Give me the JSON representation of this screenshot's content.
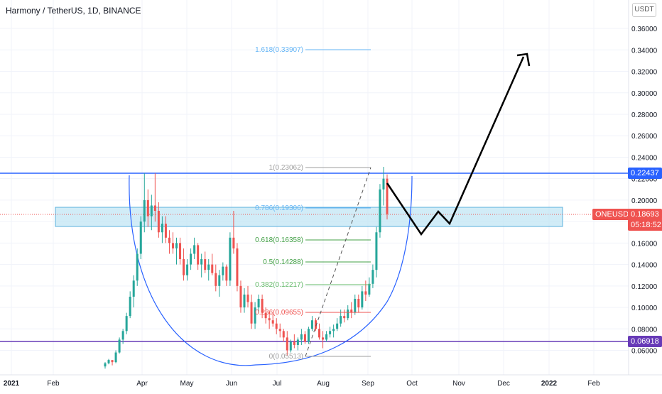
{
  "header": {
    "title": "Harmony / TetherUS, 1D, BINANCE",
    "unit": "USDT"
  },
  "chart_data": {
    "type": "candlestick",
    "title": "Harmony / TetherUS, 1D, BINANCE",
    "yaxis": {
      "ticks": [
        "0.36000",
        "0.34000",
        "0.32000",
        "0.30000",
        "0.28000",
        "0.26000",
        "0.24000",
        "0.22000",
        "0.20000",
        "0.18000",
        "0.16000",
        "0.14000",
        "0.12000",
        "0.10000",
        "0.08000",
        "0.06000"
      ],
      "values": [
        0.36,
        0.34,
        0.32,
        0.3,
        0.28,
        0.26,
        0.24,
        0.22,
        0.2,
        0.18,
        0.16,
        0.14,
        0.12,
        0.1,
        0.08,
        0.06
      ],
      "label": "USDT"
    },
    "xaxis": {
      "ticks": [
        "2021",
        "Feb",
        "Apr",
        "May",
        "Jun",
        "Jul",
        "Aug",
        "Sep",
        "Oct",
        "Nov",
        "Dec",
        "2022",
        "Feb"
      ],
      "bold": [
        "2021",
        "2022"
      ]
    },
    "price_labels": [
      {
        "name": "resistance",
        "value": "0.22437",
        "color": "#2962ff"
      },
      {
        "name": "symbol",
        "value": "ONEUSDT",
        "color": "#ef5350"
      },
      {
        "name": "last",
        "value": "0.18693",
        "color": "#ef5350"
      },
      {
        "name": "countdown",
        "value": "05:18:52",
        "color": "#ef5350"
      },
      {
        "name": "support",
        "value": "0.06918",
        "color": "#673ab7"
      }
    ],
    "fib_levels": [
      {
        "label": "1.618(0.33907)",
        "color": "#64b5f6"
      },
      {
        "label": "1(0.23062)",
        "color": "#9e9e9e"
      },
      {
        "label": "0.786(0.19306)",
        "color": "#64b5f6"
      },
      {
        "label": "0.618(0.16358)",
        "color": "#43a047"
      },
      {
        "label": "0.5(0.14288)",
        "color": "#43a047"
      },
      {
        "label": "0.382(0.12217)",
        "color": "#66bb6a"
      },
      {
        "label": "0.236(0.09655)",
        "color": "#ef5350"
      },
      {
        "label": "0(0.05513)",
        "color": "#9e9e9e"
      }
    ],
    "candles": [
      [
        0.045,
        0.049,
        0.043,
        0.048
      ],
      [
        0.048,
        0.052,
        0.047,
        0.051
      ],
      [
        0.051,
        0.05,
        0.046,
        0.049
      ],
      [
        0.049,
        0.06,
        0.048,
        0.058
      ],
      [
        0.058,
        0.072,
        0.057,
        0.07
      ],
      [
        0.07,
        0.08,
        0.066,
        0.078
      ],
      [
        0.078,
        0.095,
        0.075,
        0.092
      ],
      [
        0.092,
        0.115,
        0.09,
        0.11
      ],
      [
        0.11,
        0.13,
        0.1,
        0.125
      ],
      [
        0.125,
        0.155,
        0.12,
        0.15
      ],
      [
        0.15,
        0.185,
        0.145,
        0.18
      ],
      [
        0.18,
        0.225,
        0.17,
        0.2
      ],
      [
        0.2,
        0.21,
        0.175,
        0.185
      ],
      [
        0.185,
        0.205,
        0.172,
        0.195
      ],
      [
        0.195,
        0.225,
        0.18,
        0.19
      ],
      [
        0.19,
        0.198,
        0.165,
        0.17
      ],
      [
        0.17,
        0.185,
        0.16,
        0.178
      ],
      [
        0.178,
        0.185,
        0.16,
        0.165
      ],
      [
        0.165,
        0.172,
        0.15,
        0.16
      ],
      [
        0.16,
        0.17,
        0.15,
        0.155
      ],
      [
        0.155,
        0.165,
        0.14,
        0.16
      ],
      [
        0.16,
        0.165,
        0.14,
        0.145
      ],
      [
        0.145,
        0.155,
        0.125,
        0.13
      ],
      [
        0.13,
        0.145,
        0.125,
        0.14
      ],
      [
        0.14,
        0.155,
        0.135,
        0.15
      ],
      [
        0.15,
        0.165,
        0.145,
        0.158
      ],
      [
        0.158,
        0.16,
        0.135,
        0.14
      ],
      [
        0.14,
        0.15,
        0.128,
        0.145
      ],
      [
        0.145,
        0.152,
        0.132,
        0.135
      ],
      [
        0.135,
        0.145,
        0.125,
        0.14
      ],
      [
        0.14,
        0.15,
        0.13,
        0.132
      ],
      [
        0.132,
        0.14,
        0.115,
        0.12
      ],
      [
        0.12,
        0.135,
        0.11,
        0.13
      ],
      [
        0.13,
        0.142,
        0.125,
        0.138
      ],
      [
        0.138,
        0.14,
        0.12,
        0.125
      ],
      [
        0.125,
        0.17,
        0.12,
        0.165
      ],
      [
        0.165,
        0.19,
        0.15,
        0.155
      ],
      [
        0.155,
        0.16,
        0.115,
        0.12
      ],
      [
        0.12,
        0.125,
        0.095,
        0.1
      ],
      [
        0.1,
        0.118,
        0.095,
        0.112
      ],
      [
        0.112,
        0.12,
        0.1,
        0.105
      ],
      [
        0.105,
        0.112,
        0.08,
        0.085
      ],
      [
        0.085,
        0.105,
        0.08,
        0.1
      ],
      [
        0.1,
        0.112,
        0.095,
        0.108
      ],
      [
        0.108,
        0.112,
        0.09,
        0.095
      ],
      [
        0.095,
        0.1,
        0.085,
        0.09
      ],
      [
        0.09,
        0.096,
        0.08,
        0.088
      ],
      [
        0.088,
        0.094,
        0.082,
        0.085
      ],
      [
        0.085,
        0.09,
        0.075,
        0.08
      ],
      [
        0.08,
        0.085,
        0.072,
        0.078
      ],
      [
        0.078,
        0.08,
        0.068,
        0.072
      ],
      [
        0.072,
        0.078,
        0.055,
        0.06
      ],
      [
        0.06,
        0.07,
        0.058,
        0.068
      ],
      [
        0.068,
        0.075,
        0.062,
        0.065
      ],
      [
        0.065,
        0.072,
        0.06,
        0.07
      ],
      [
        0.07,
        0.08,
        0.065,
        0.075
      ],
      [
        0.075,
        0.078,
        0.066,
        0.068
      ],
      [
        0.068,
        0.082,
        0.066,
        0.08
      ],
      [
        0.08,
        0.092,
        0.078,
        0.088
      ],
      [
        0.088,
        0.09,
        0.078,
        0.08
      ],
      [
        0.08,
        0.085,
        0.07,
        0.072
      ],
      [
        0.072,
        0.078,
        0.062,
        0.07
      ],
      [
        0.07,
        0.078,
        0.068,
        0.075
      ],
      [
        0.075,
        0.082,
        0.072,
        0.078
      ],
      [
        0.078,
        0.084,
        0.072,
        0.08
      ],
      [
        0.08,
        0.09,
        0.078,
        0.085
      ],
      [
        0.085,
        0.098,
        0.082,
        0.092
      ],
      [
        0.092,
        0.098,
        0.086,
        0.09
      ],
      [
        0.09,
        0.102,
        0.088,
        0.098
      ],
      [
        0.098,
        0.105,
        0.09,
        0.095
      ],
      [
        0.095,
        0.112,
        0.093,
        0.108
      ],
      [
        0.108,
        0.112,
        0.095,
        0.1
      ],
      [
        0.1,
        0.12,
        0.098,
        0.115
      ],
      [
        0.115,
        0.125,
        0.106,
        0.112
      ],
      [
        0.112,
        0.128,
        0.11,
        0.122
      ],
      [
        0.122,
        0.14,
        0.118,
        0.135
      ],
      [
        0.135,
        0.175,
        0.128,
        0.17
      ],
      [
        0.17,
        0.215,
        0.165,
        0.21
      ],
      [
        0.21,
        0.231,
        0.195,
        0.22
      ],
      [
        0.22,
        0.224,
        0.182,
        0.187
      ]
    ]
  }
}
